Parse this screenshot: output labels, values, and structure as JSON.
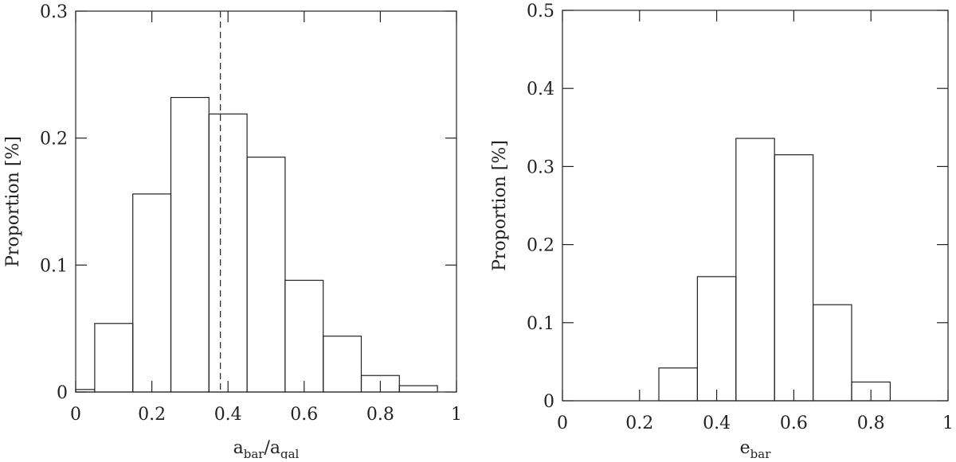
{
  "chart_data": [
    {
      "type": "histogram",
      "xlabel": [
        {
          "text": "a"
        },
        {
          "text": "bar",
          "sub": true
        },
        {
          "text": "/a"
        },
        {
          "text": "gal",
          "sub": true
        }
      ],
      "ylabel": "Proportion [%]",
      "bins": [
        0,
        0.05,
        0.15,
        0.25,
        0.35,
        0.45,
        0.55,
        0.65,
        0.75,
        0.85,
        0.95,
        1.0
      ],
      "values": [
        0.002,
        0.054,
        0.156,
        0.232,
        0.219,
        0.185,
        0.088,
        0.044,
        0.013,
        0.005,
        0
      ],
      "reference_x": 0.38,
      "xlim": [
        0,
        1
      ],
      "xticks": [
        0,
        0.2,
        0.4,
        0.6,
        0.8,
        1
      ],
      "ylim": [
        0,
        0.3
      ],
      "yticks": [
        0,
        0.1,
        0.2,
        0.3
      ]
    },
    {
      "type": "histogram",
      "xlabel": [
        {
          "text": "e"
        },
        {
          "text": "bar",
          "sub": true
        }
      ],
      "ylabel": "Proportion [%]",
      "bins": [
        0.25,
        0.35,
        0.45,
        0.55,
        0.65,
        0.75,
        0.85
      ],
      "values": [
        0.042,
        0.159,
        0.336,
        0.315,
        0.123,
        0.024
      ],
      "xlim": [
        0,
        1
      ],
      "xticks": [
        0,
        0.2,
        0.4,
        0.6,
        0.8,
        1
      ],
      "ylim": [
        0,
        0.5
      ],
      "yticks": [
        0,
        0.1,
        0.2,
        0.3,
        0.4,
        0.5
      ]
    }
  ]
}
